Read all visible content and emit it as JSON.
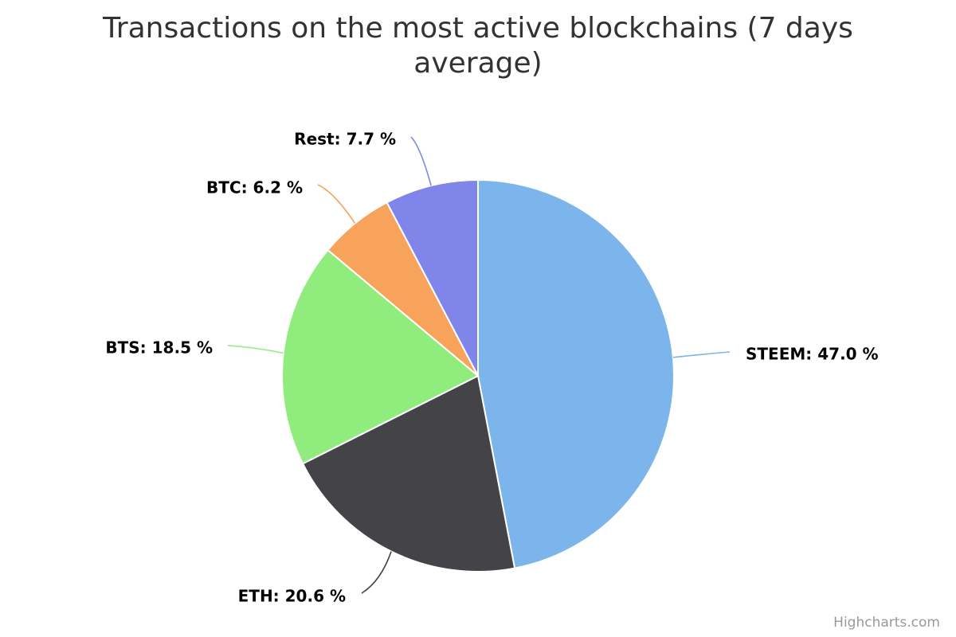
{
  "chart_data": {
    "type": "pie",
    "title_lines": [
      "Transactions on the most active blockchains (7 days",
      "average)"
    ],
    "slices": [
      {
        "name": "STEEM",
        "value": 47.0,
        "label": "STEEM: 47.0 %",
        "color": "#7cb5ec"
      },
      {
        "name": "ETH",
        "value": 20.6,
        "label": "ETH: 20.6 %",
        "color": "#434348"
      },
      {
        "name": "BTS",
        "value": 18.5,
        "label": "BTS: 18.5 %",
        "color": "#90ed7d"
      },
      {
        "name": "BTC",
        "value": 6.2,
        "label": "BTC: 6.2 %",
        "color": "#f7a35c"
      },
      {
        "name": "Rest",
        "value": 7.7,
        "label": "Rest: 7.7 %",
        "color": "#8085e9"
      }
    ],
    "start_angle_deg": 0,
    "direction": "clockwise",
    "legend": "none"
  },
  "credits": "Highcharts.com"
}
